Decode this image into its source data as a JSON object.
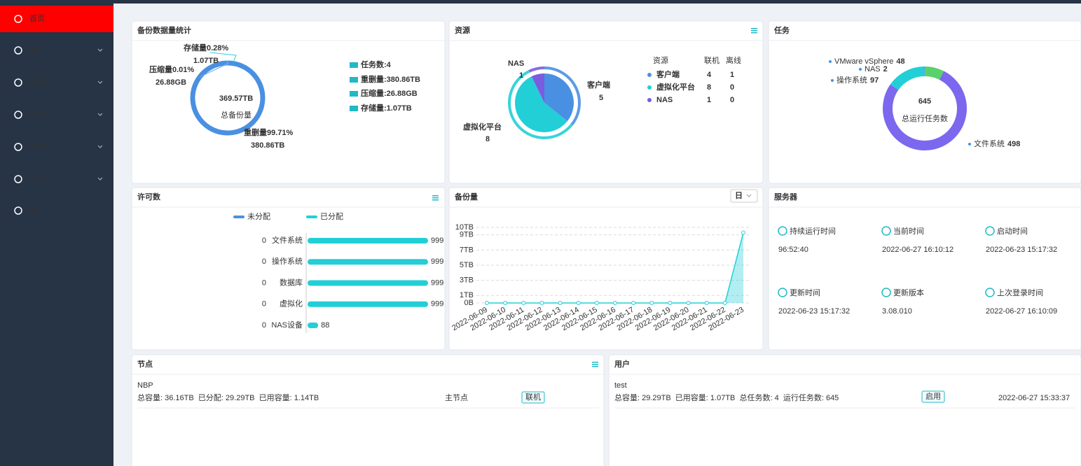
{
  "sidebar": {
    "items": [
      "首页",
      "用户",
      "资源",
      "存储",
      "系统",
      "日志",
      "关于"
    ]
  },
  "backup_stats": {
    "title": "备份数据量统计",
    "total": "369.57TB",
    "total_label": "总备份量",
    "slices": [
      {
        "label": "重删量99.71%",
        "value": 99.71,
        "size": "380.86TB",
        "color": "#4a90e2"
      },
      {
        "label": "压缩量0.01%",
        "value": 0.01,
        "size": "26.88GB",
        "color": "#6aa8ee"
      },
      {
        "label": "存储量0.28%",
        "value": 0.28,
        "size": "1.07TB",
        "color": "#22cfd6"
      }
    ],
    "legend": [
      "任务数:4",
      "重删量:380.86TB",
      "压缩量:26.88GB",
      "存储量:1.07TB"
    ],
    "legend_color": "#20b9c5"
  },
  "resources": {
    "title": "资源",
    "slices": [
      {
        "name": "客户端",
        "value": 5,
        "color": "#4a90e2"
      },
      {
        "name": "虚拟化平台",
        "value": 8,
        "color": "#22cfd6"
      },
      {
        "name": "NAS",
        "value": 1,
        "color": "#7b5be0"
      }
    ],
    "table": {
      "header": [
        "资源",
        "联机",
        "离线"
      ],
      "rows": [
        [
          "客户端",
          4,
          1
        ],
        [
          "虚拟化平台",
          8,
          0
        ],
        [
          "NAS",
          1,
          0
        ]
      ]
    }
  },
  "tasks": {
    "title": "任务",
    "total": 645,
    "total_label": "总运行任务数",
    "slices": [
      {
        "name": "VMware vSphere",
        "value": 48,
        "color": "#5ad16a"
      },
      {
        "name": "NAS",
        "value": 2,
        "color": "#4a90e2"
      },
      {
        "name": "操作系统",
        "value": 97,
        "color": "#22cfd6"
      },
      {
        "name": "文件系统",
        "value": 498,
        "color": "#7b68ee"
      }
    ]
  },
  "licenses": {
    "title": "许可数",
    "chart_data": {
      "type": "bar",
      "categories": [
        "文件系统",
        "操作系统",
        "数据库",
        "虚拟化",
        "NAS设备"
      ],
      "series": [
        {
          "name": "未分配",
          "color": "#4a90e2",
          "values": [
            0,
            0,
            0,
            0,
            0
          ]
        },
        {
          "name": "已分配",
          "color": "#22cfd6",
          "values": [
            999,
            999,
            999,
            999,
            88
          ]
        }
      ]
    }
  },
  "backup_volume": {
    "title": "备份量",
    "period": "日",
    "chart_data": {
      "type": "line",
      "x": [
        "2022-06-09",
        "2022-06-10",
        "2022-06-11",
        "2022-06-12",
        "2022-06-13",
        "2022-06-14",
        "2022-06-15",
        "2022-06-16",
        "2022-06-17",
        "2022-06-18",
        "2022-06-19",
        "2022-06-20",
        "2022-06-21",
        "2022-06-22",
        "2022-06-23"
      ],
      "series": [
        {
          "color": "#22cfd6",
          "values": [
            0,
            0,
            0,
            0,
            0,
            0,
            0,
            0,
            0,
            0,
            0,
            0,
            0,
            0,
            9.3
          ]
        }
      ],
      "ylim": [
        0,
        10
      ],
      "yticks": [
        {
          "value": 0,
          "label": "0B"
        },
        {
          "value": 1,
          "label": "1TB"
        },
        {
          "value": 3,
          "label": "3TB"
        },
        {
          "value": 5,
          "label": "5TB"
        },
        {
          "value": 7,
          "label": "7TB"
        },
        {
          "value": 9,
          "label": "9TB"
        },
        {
          "value": 10,
          "label": "10TB"
        }
      ],
      "grid": true
    }
  },
  "server": {
    "title": "服务器",
    "items": [
      {
        "label": "持续运行时间",
        "value": "96:52:40"
      },
      {
        "label": "当前时间",
        "value": "2022-06-27 16:10:12"
      },
      {
        "label": "启动时间",
        "value": "2022-06-23 15:17:32"
      },
      {
        "label": "更新时间",
        "value": "2022-06-23 15:17:32"
      },
      {
        "label": "更新版本",
        "value": "3.08.010"
      },
      {
        "label": "上次登录时间",
        "value": "2022-06-27 16:10:09"
      }
    ]
  },
  "nodes": {
    "title": "节点",
    "rows": [
      {
        "name": "NBP",
        "info": "总容量: 36.16TB  已分配: 29.29TB  已用容量: 1.14TB",
        "role": "主节点",
        "status": "联机"
      }
    ]
  },
  "users": {
    "title": "用户",
    "rows": [
      {
        "name": "test",
        "info": "总容量: 29.29TB  已用容量: 1.07TB  总任务数: 4  运行任务数: 645",
        "status": "启用",
        "time": "2022-06-27 15:33:37"
      }
    ]
  }
}
